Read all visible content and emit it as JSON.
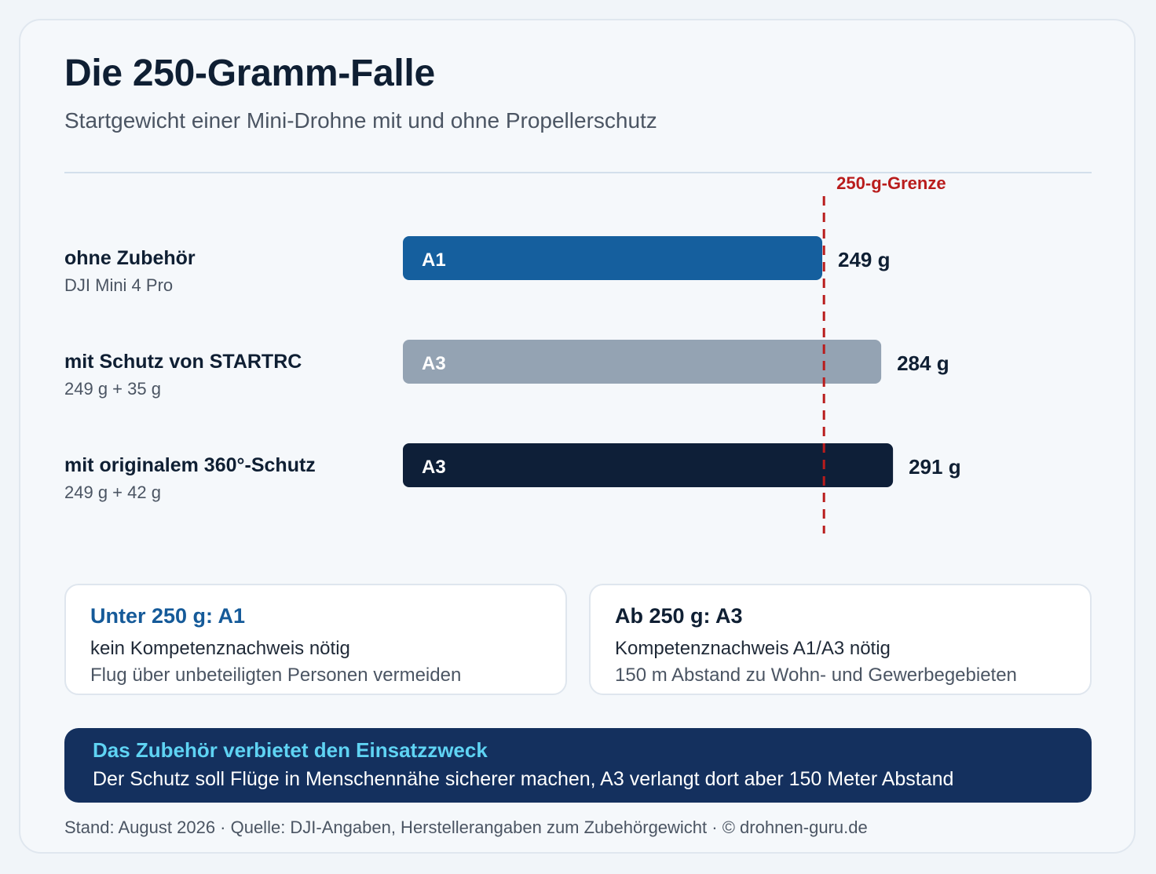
{
  "header": {
    "title": "Die 250-Gramm-Falle",
    "subtitle": "Startgewicht einer Mini-Drohne mit und ohne Propellerschutz"
  },
  "chart_data": {
    "type": "bar",
    "orientation": "horizontal",
    "categories": [
      "ohne Zubehör",
      "mit Schutz von STARTRC",
      "mit originalem 360°-Schutz"
    ],
    "category_sublabels": [
      "DJI Mini 4 Pro",
      "249 g + 35 g",
      "249 g + 42 g"
    ],
    "values": [
      249,
      284,
      291
    ],
    "value_labels": [
      "249 g",
      "284 g",
      "291 g"
    ],
    "bar_labels": [
      "A1",
      "A3",
      "A3"
    ],
    "bar_colors": [
      "#155f9e",
      "#94a3b3",
      "#0e1f38"
    ],
    "unit": "g",
    "reference_line": {
      "value": 250,
      "label": "250-g-Grenze",
      "color": "#b91c1c"
    },
    "grid": false
  },
  "info_boxes": [
    {
      "heading": "Unter 250 g: A1",
      "line1": "kein Kompetenznachweis nötig",
      "line2": "Flug über unbeteiligten Personen vermeiden"
    },
    {
      "heading": "Ab 250 g: A3",
      "line1": "Kompetenznachweis A1/A3 nötig",
      "line2": "150 m Abstand zu Wohn- und Gewerbegebieten"
    }
  ],
  "banner": {
    "heading": "Das Zubehör verbietet den Einsatzzweck",
    "text": "Der Schutz soll Flüge in Menschennähe sicherer machen, A3 verlangt dort aber 150 Meter Abstand"
  },
  "footer": {
    "text": "Stand: August 2026 · Quelle: DJI-Angaben, Herstellerangaben zum Zubehörgewicht · © drohnen-guru.de"
  }
}
